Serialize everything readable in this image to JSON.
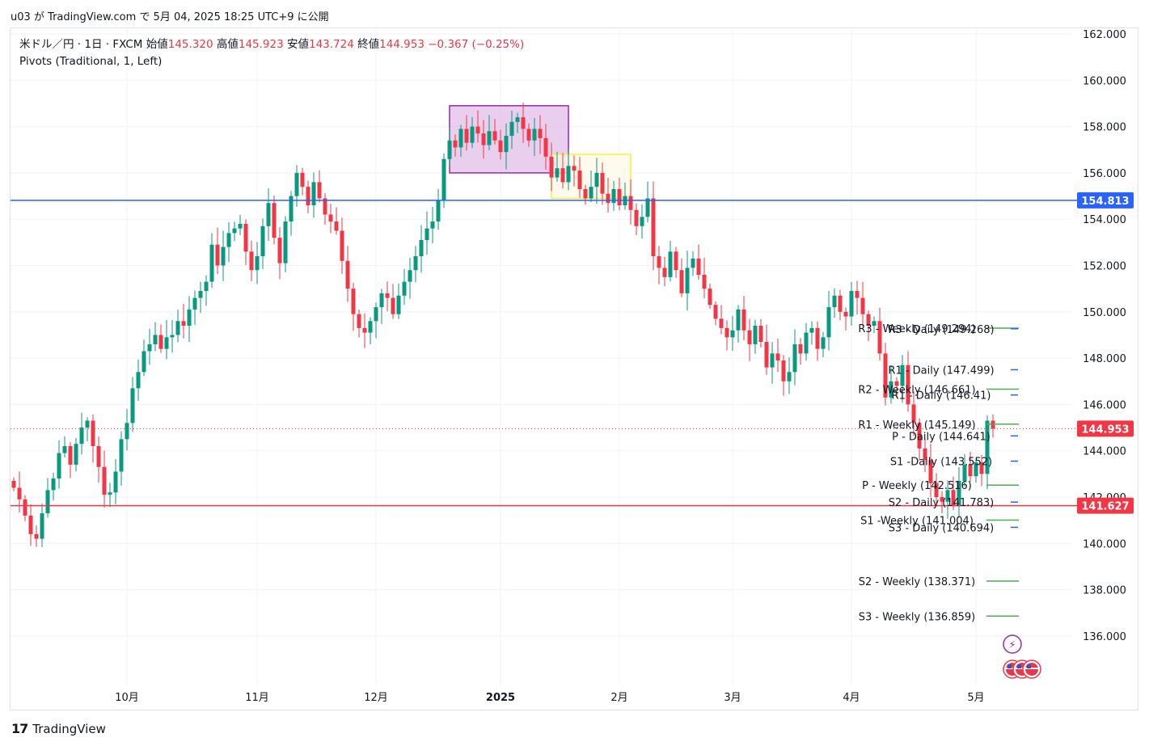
{
  "published": "u03 が TradingView.com で 5月 04, 2025 18:25 UTC+9 に公開",
  "legend": {
    "symbol": "米ドル／円 · 1日 · FXCM",
    "open_label": "始値",
    "open": "145.320",
    "high_label": "高値",
    "high": "145.923",
    "low_label": "安値",
    "low": "143.724",
    "close_label": "終値",
    "close": "144.953",
    "change": "−0.367 (−0.25%)",
    "indicator": "Pivots (Traditional, 1, Left)"
  },
  "footer": {
    "brand": "TradingView"
  },
  "colors": {
    "up": "#089981",
    "down": "#f23645",
    "blue_line": "#2962ff",
    "red_line": "#f23645",
    "pivot_line": "#4caf50"
  },
  "chart_data": {
    "type": "candlestick",
    "yticks": [
      "162.000",
      "160.000",
      "158.000",
      "156.000",
      "154.000",
      "152.000",
      "150.000",
      "148.000",
      "146.000",
      "144.000",
      "142.000",
      "140.000",
      "138.000",
      "136.000"
    ],
    "ylim": [
      134.0,
      162.5
    ],
    "xticks": [
      {
        "label": "10月",
        "index": 20
      },
      {
        "label": "11月",
        "index": 43
      },
      {
        "label": "12月",
        "index": 64
      },
      {
        "label": "2025",
        "index": 86,
        "bold": true
      },
      {
        "label": "2月",
        "index": 107
      },
      {
        "label": "3月",
        "index": 127
      },
      {
        "label": "4月",
        "index": 148
      },
      {
        "label": "5月",
        "index": 170
      }
    ],
    "price_lines": [
      {
        "value": 154.813,
        "label": "154.813",
        "color": "#2962ff"
      },
      {
        "value": 144.953,
        "label": "144.953",
        "color": "#f23645",
        "dotted": true
      },
      {
        "value": 141.627,
        "label": "141.627",
        "color": "#f23645"
      }
    ],
    "zones": [
      {
        "from": 77,
        "to": 98,
        "top": 158.9,
        "bottom": 156.0,
        "fill": "#e1bee7",
        "stroke": "#9c27b0"
      },
      {
        "from": 95,
        "to": 109,
        "top": 156.8,
        "bottom": 154.9,
        "fill": "#fff9e6",
        "stroke": "#ffeb3b"
      }
    ],
    "pivots": [
      {
        "text": "R3 - Weekly (149.294)",
        "value": 149.294
      },
      {
        "text": "R3 - Daily (149.268)",
        "value": 149.268
      },
      {
        "text": "R1 - Daily (147.499)",
        "value": 147.499
      },
      {
        "text": "R2 - Weekly (146.661)",
        "value": 146.661
      },
      {
        "text": "R1 - Daily (146.41)",
        "value": 146.41
      },
      {
        "text": "R1 - Weekly (145.149)",
        "value": 145.149
      },
      {
        "text": "P - Daily (144.641)",
        "value": 144.641
      },
      {
        "text": "S1 -Daily (143.552)",
        "value": 143.552
      },
      {
        "text": "P - Weekly (142.516)",
        "value": 142.516
      },
      {
        "text": "S2 - Daily (141.783)",
        "value": 141.783
      },
      {
        "text": "S1 -Weekly (141.004)",
        "value": 141.004
      },
      {
        "text": "S3 - Daily (140.694)",
        "value": 140.694
      },
      {
        "text": "S2 - Weekly (138.371)",
        "value": 138.371
      },
      {
        "text": "S3 - Weekly (136.859)",
        "value": 136.859
      }
    ],
    "closes": [
      142.4,
      141.9,
      141.2,
      140.4,
      140.2,
      141.3,
      142.3,
      142.8,
      143.9,
      144.2,
      143.4,
      144.3,
      145.0,
      145.3,
      144.2,
      143.3,
      142.1,
      142.2,
      143.1,
      144.5,
      145.2,
      146.7,
      147.4,
      148.3,
      148.6,
      149.0,
      148.4,
      148.9,
      149.0,
      149.6,
      149.4,
      150.1,
      150.6,
      150.9,
      151.3,
      152.9,
      152.0,
      152.8,
      153.4,
      153.6,
      153.8,
      152.6,
      151.8,
      152.4,
      153.7,
      154.7,
      153.2,
      152.1,
      153.9,
      155.0,
      156.0,
      155.4,
      154.6,
      155.6,
      154.9,
      154.2,
      153.9,
      153.5,
      152.2,
      151.0,
      149.9,
      149.3,
      149.1,
      149.6,
      150.2,
      150.8,
      150.6,
      149.9,
      150.7,
      151.3,
      151.8,
      152.4,
      153.1,
      153.6,
      153.9,
      154.8,
      156.6,
      157.4,
      157.1,
      157.9,
      157.3,
      158.0,
      157.7,
      157.2,
      157.8,
      157.4,
      156.9,
      157.6,
      158.2,
      158.4,
      157.9,
      157.4,
      157.9,
      157.5,
      156.7,
      155.8,
      156.2,
      155.6,
      156.3,
      156.1,
      155.3,
      154.9,
      155.4,
      156.0,
      155.1,
      154.7,
      155.3,
      154.6,
      155.0,
      154.4,
      153.7,
      154.1,
      154.9,
      152.4,
      151.9,
      151.5,
      152.6,
      151.8,
      150.8,
      151.9,
      152.3,
      151.6,
      151.0,
      150.3,
      149.7,
      149.3,
      148.9,
      149.2,
      150.1,
      149.2,
      148.6,
      149.4,
      148.7,
      147.6,
      148.2,
      147.9,
      147.0,
      147.4,
      148.6,
      148.2,
      149.1,
      149.3,
      148.4,
      148.9,
      150.2,
      150.7,
      150.0,
      149.8,
      150.9,
      150.6,
      149.9,
      149.4,
      149.6,
      148.2,
      146.3,
      147.0,
      146.8,
      147.7,
      146.0,
      145.2,
      144.1,
      143.6,
      142.6,
      142.0,
      141.8,
      142.3,
      141.6,
      142.7,
      143.4,
      142.9,
      143.5,
      143.0,
      145.3,
      144.953
    ]
  }
}
